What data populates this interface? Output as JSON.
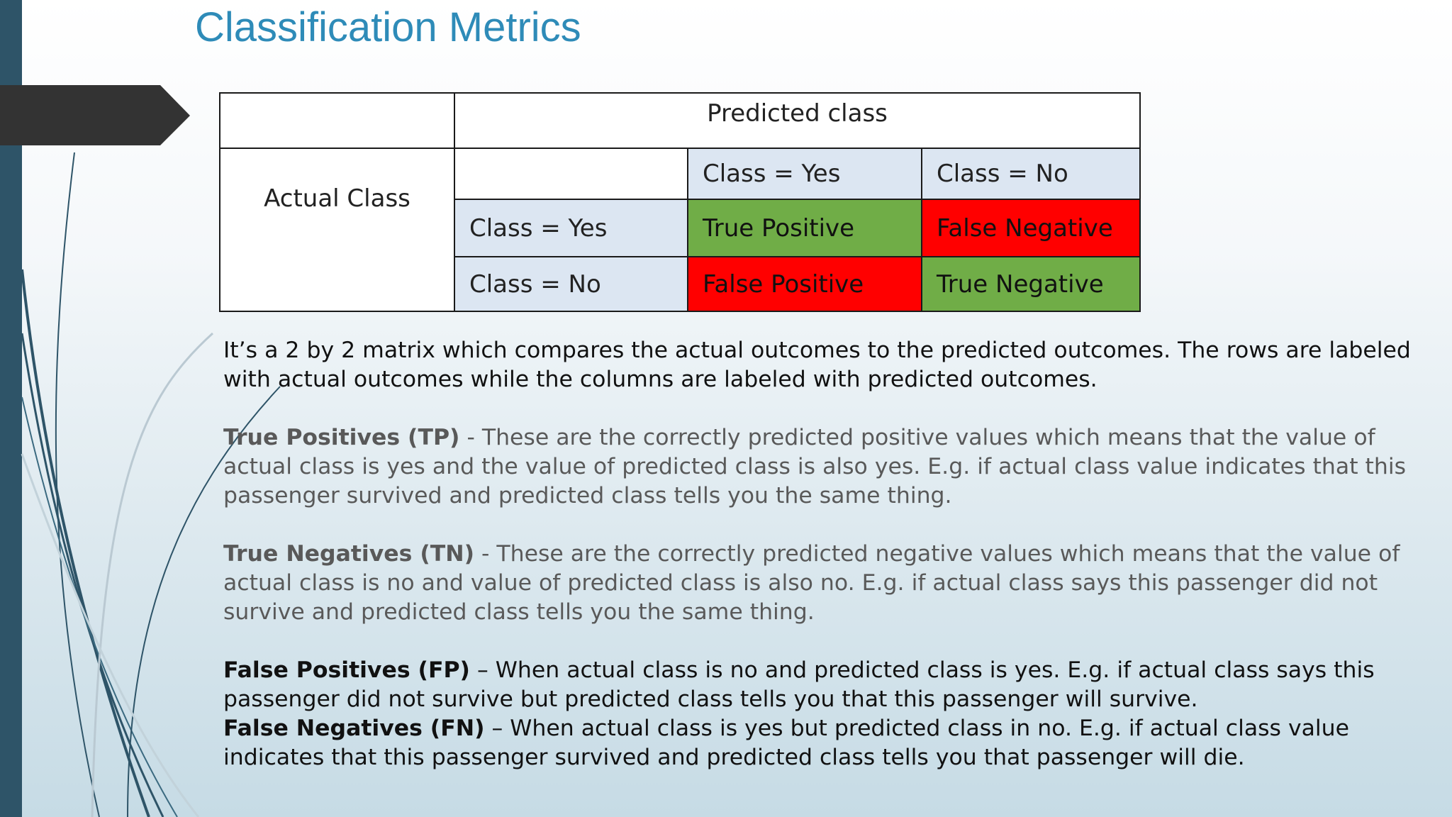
{
  "title": "Classification Metrics",
  "matrix": {
    "predicted_header": "Predicted class",
    "actual_header": "Actual Class",
    "col_yes": "Class = Yes",
    "col_no": "Class = No",
    "row_yes": "Class = Yes",
    "row_no": "Class = No",
    "tp": "True Positive",
    "fn": "False Negative",
    "fp": "False Positive",
    "tn": "True Negative",
    "colors": {
      "blue": "#dce6f2",
      "green": "#70ad47",
      "red": "#ff0000"
    }
  },
  "text": {
    "intro": "It’s a 2 by 2 matrix which compares the actual outcomes to the predicted outcomes. The rows are labeled with actual outcomes while the columns are labeled with predicted outcomes.",
    "tp_term": "True Positives (TP)",
    "tp_desc": " - These are the correctly predicted positive values which means that the value of actual class is yes and the value of predicted class is also yes. E.g. if actual class value indicates that this passenger survived and predicted class tells you the same thing.",
    "tn_term": "True Negatives (TN)",
    "tn_desc": " - These are the correctly predicted negative values which means that the value of actual class is no and value of predicted class is also no. E.g. if actual class says this passenger did not survive and predicted class tells you the same thing.",
    "fp_term": "False Positives (FP)",
    "fp_desc": " – When actual class is no and predicted class is yes. E.g. if actual class says this passenger did not survive but predicted class tells you that this passenger will survive.",
    "fn_term": "False Negatives (FN)",
    "fn_desc": " – When actual class is yes but predicted class in no. E.g. if actual class value indicates that this passenger survived and predicted class tells you that passenger will die."
  },
  "theme": {
    "title_color": "#2e8bb8",
    "bar_color": "#2e5468",
    "arrow_color": "#333333"
  }
}
